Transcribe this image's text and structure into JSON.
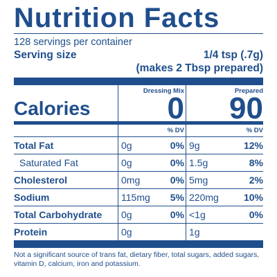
{
  "title": "Nutrition Facts",
  "servings_per_container": "128 servings per container",
  "serving_size_label": "Serving size",
  "serving_size_value": "1/4 tsp (.7g)",
  "serving_size_note": "(makes 2 Tbsp prepared)",
  "calories_label": "Calories",
  "columns": [
    {
      "heading": "Dressing Mix",
      "calories": "0"
    },
    {
      "heading": "Prepared",
      "calories": "90"
    }
  ],
  "dv_heading": "% DV",
  "rows": [
    {
      "label": "Total Fat",
      "bold": true,
      "indent": false,
      "mix_amount": "0g",
      "mix_dv": "0%",
      "prep_amount": "9g",
      "prep_dv": "12%"
    },
    {
      "label": "Saturated Fat",
      "bold": false,
      "indent": true,
      "mix_amount": "0g",
      "mix_dv": "0%",
      "prep_amount": "1.5g",
      "prep_dv": "8%"
    },
    {
      "label": "Cholesterol",
      "bold": true,
      "indent": false,
      "mix_amount": "0mg",
      "mix_dv": "0%",
      "prep_amount": "5mg",
      "prep_dv": "2%"
    },
    {
      "label": "Sodium",
      "bold": true,
      "indent": false,
      "mix_amount": "115mg",
      "mix_dv": "5%",
      "prep_amount": "220mg",
      "prep_dv": "10%"
    },
    {
      "label": "Total Carbohydrate",
      "bold": true,
      "indent": false,
      "mix_amount": "0g",
      "mix_dv": "0%",
      "prep_amount": "<1g",
      "prep_dv": "0%"
    },
    {
      "label": "Protein",
      "bold": true,
      "indent": false,
      "mix_amount": "0g",
      "mix_dv": "",
      "prep_amount": "1g",
      "prep_dv": ""
    }
  ],
  "footnote": "Not a significant source of trans fat, dietary fiber, total sugars, added sugars, vitamin D, calcium, iron and potassium.",
  "colors": {
    "ink": "#1f4e8c",
    "background": "#ffffff"
  }
}
